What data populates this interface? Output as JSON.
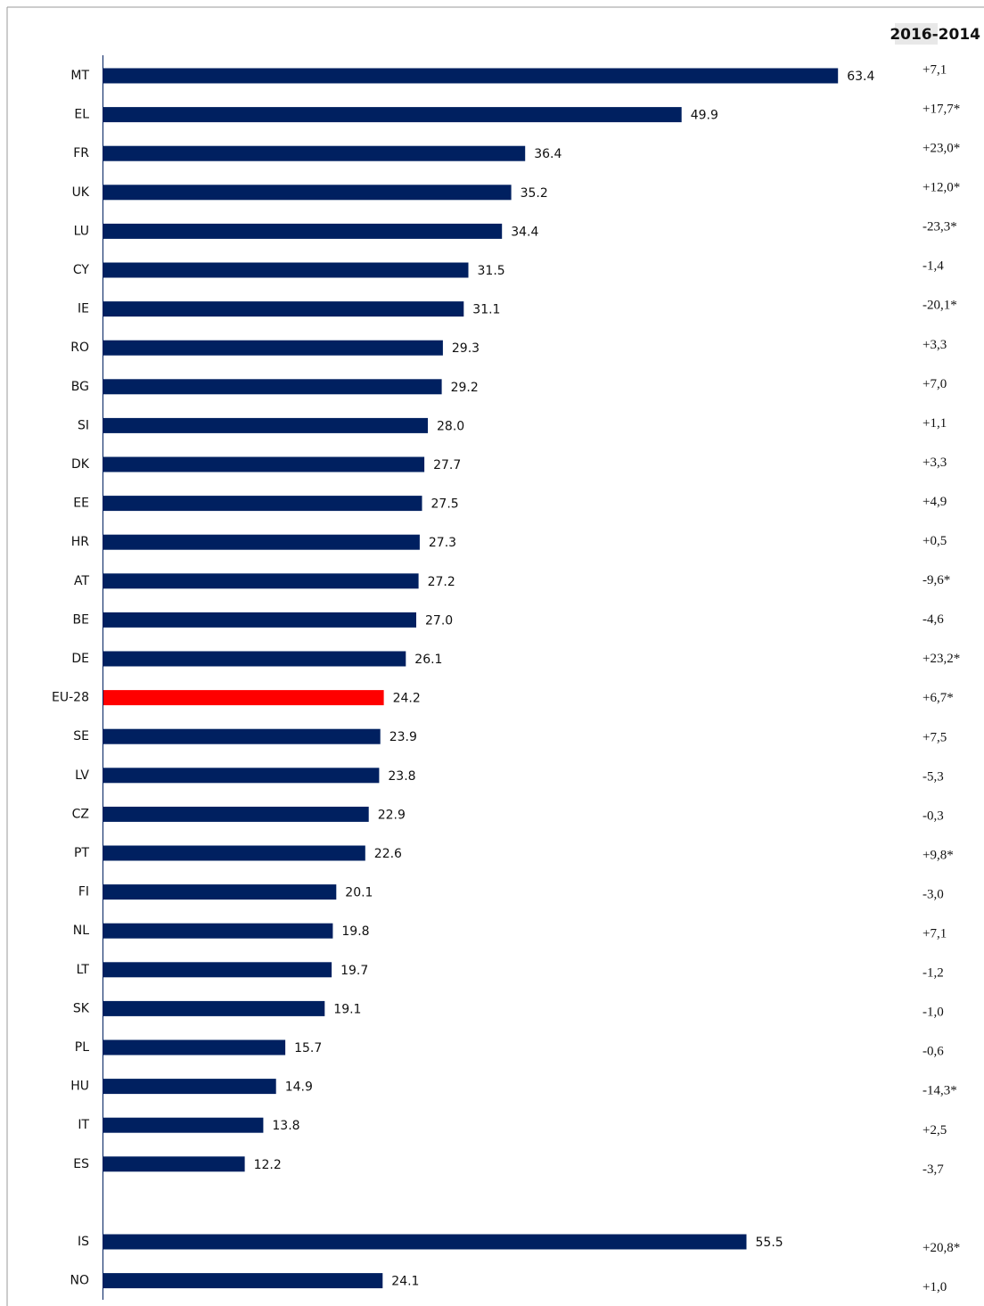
{
  "chart_data": {
    "type": "barh",
    "categories": [
      "MT",
      "EL",
      "FR",
      "UK",
      "LU",
      "CY",
      "IE",
      "RO",
      "BG",
      "SI",
      "DK",
      "EE",
      "HR",
      "AT",
      "BE",
      "DE",
      "EU-28",
      "SE",
      "LV",
      "CZ",
      "PT",
      "FI",
      "NL",
      "LT",
      "SK",
      "PL",
      "HU",
      "IT",
      "ES",
      null,
      "IS",
      "NO"
    ],
    "values": [
      63.4,
      49.9,
      36.4,
      35.2,
      34.4,
      31.5,
      31.1,
      29.3,
      29.2,
      28.0,
      27.7,
      27.5,
      27.3,
      27.2,
      27.0,
      26.1,
      24.2,
      23.9,
      23.8,
      22.9,
      22.6,
      20.1,
      19.8,
      19.7,
      19.1,
      15.7,
      14.9,
      13.8,
      12.2,
      null,
      55.5,
      24.1
    ],
    "value_labels": [
      "63.4",
      "49.9",
      "36.4",
      "35.2",
      "34.4",
      "31.5",
      "31.1",
      "29.3",
      "29.2",
      "28.0",
      "27.7",
      "27.5",
      "27.3",
      "27.2",
      "27.0",
      "26.1",
      "24.2",
      "23.9",
      "23.8",
      "22.9",
      "22.6",
      "20.1",
      "19.8",
      "19.7",
      "19.1",
      "15.7",
      "14.9",
      "13.8",
      "12.2",
      null,
      "55.5",
      "24.1"
    ],
    "colors": [
      "#002060",
      "#002060",
      "#002060",
      "#002060",
      "#002060",
      "#002060",
      "#002060",
      "#002060",
      "#002060",
      "#002060",
      "#002060",
      "#002060",
      "#002060",
      "#002060",
      "#002060",
      "#002060",
      "#ff0000",
      "#002060",
      "#002060",
      "#002060",
      "#002060",
      "#002060",
      "#002060",
      "#002060",
      "#002060",
      "#002060",
      "#002060",
      "#002060",
      "#002060",
      null,
      "#002060",
      "#002060"
    ],
    "change_header": "2016-2014",
    "changes": [
      "+7,1",
      "+17,7*",
      "+23,0*",
      "+12,0*",
      "-23,3*",
      "-1,4",
      "-20,1*",
      "+3,3",
      "+7,0",
      "+1,1",
      "+3,3",
      "+4,9",
      "+0,5",
      "-9,6*",
      "-4,6",
      "+23,2*",
      "+6,7*",
      "+7,5",
      "-5,3",
      "-0,3",
      "+9,8*",
      "-3,0",
      "+7,1",
      "-1,2",
      "-1,0",
      "-0,6",
      "-14,3*",
      "+2,5",
      "-3,7",
      null,
      "+20,8*",
      "+1,0"
    ],
    "xlim": [
      0,
      76
    ]
  }
}
